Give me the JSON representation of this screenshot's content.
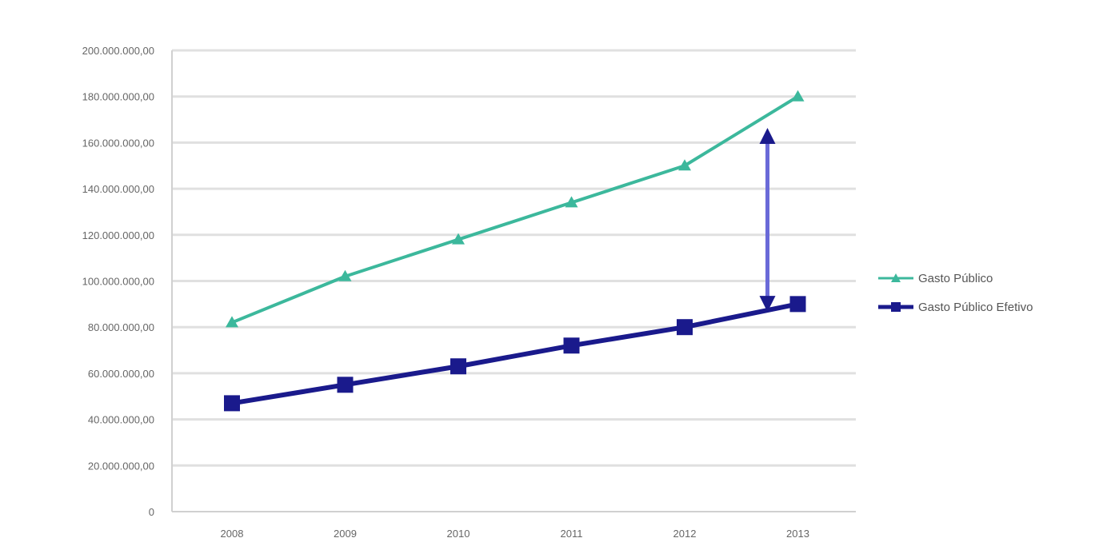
{
  "chart_data": {
    "type": "line",
    "title": "",
    "xlabel": "",
    "ylabel": "",
    "x": [
      "2008",
      "2009",
      "2010",
      "2011",
      "2012",
      "2013"
    ],
    "ylim": [
      0,
      200000000
    ],
    "yticks": [
      0,
      20000000,
      40000000,
      60000000,
      80000000,
      100000000,
      120000000,
      140000000,
      160000000,
      180000000,
      200000000
    ],
    "ytick_labels": [
      "0",
      "20.000.000,00",
      "40.000.000,00",
      "60.000.000,00",
      "80.000.000,00",
      "100.000.000,00",
      "120.000.000,00",
      "140.000.000,00",
      "160.000.000,00",
      "180.000.000,00",
      "200.000.000,00"
    ],
    "grid": true,
    "legend_position": "right",
    "series": [
      {
        "name": "Gasto Público",
        "color": "#3cb89c",
        "marker": "triangle",
        "values": [
          82000000,
          102000000,
          118000000,
          134000000,
          150000000,
          180000000
        ]
      },
      {
        "name": "Gasto Público Efetivo",
        "color": "#1a1a8c",
        "marker": "square",
        "values": [
          47000000,
          55000000,
          63000000,
          72000000,
          80000000,
          90000000
        ]
      }
    ],
    "annotations": [
      {
        "type": "double-arrow",
        "x": "2013",
        "from": 88000000,
        "to": 165000000,
        "color": "#6a6ad8"
      }
    ]
  }
}
